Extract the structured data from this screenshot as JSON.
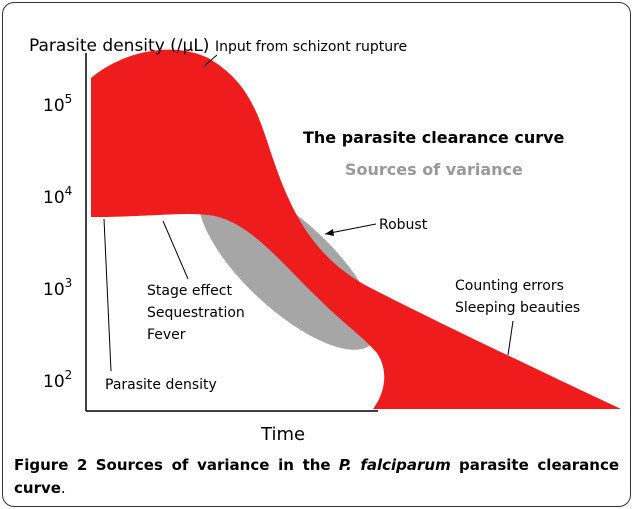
{
  "figure": {
    "y_axis_label": "Parasite density (/µL)",
    "x_axis_label": "Time",
    "y_ticks": [
      {
        "base": "10",
        "exp": "5"
      },
      {
        "base": "10",
        "exp": "4"
      },
      {
        "base": "10",
        "exp": "3"
      },
      {
        "base": "10",
        "exp": "2"
      }
    ],
    "title": "The parasite clearance curve",
    "subtitle": "Sources of variance",
    "annotations": {
      "input": "Input from schizont rupture",
      "robust": "Robust",
      "counting": [
        "Counting errors",
        "Sleeping beauties"
      ],
      "stage": [
        "Stage effect",
        "Sequestration",
        "Fever"
      ],
      "density": "Parasite density"
    }
  },
  "caption": {
    "label": "Figure 2",
    "text_before": "Sources of variance in the",
    "species": "P. falciparum",
    "text_after": "parasite clearance curve",
    "end": "."
  }
}
